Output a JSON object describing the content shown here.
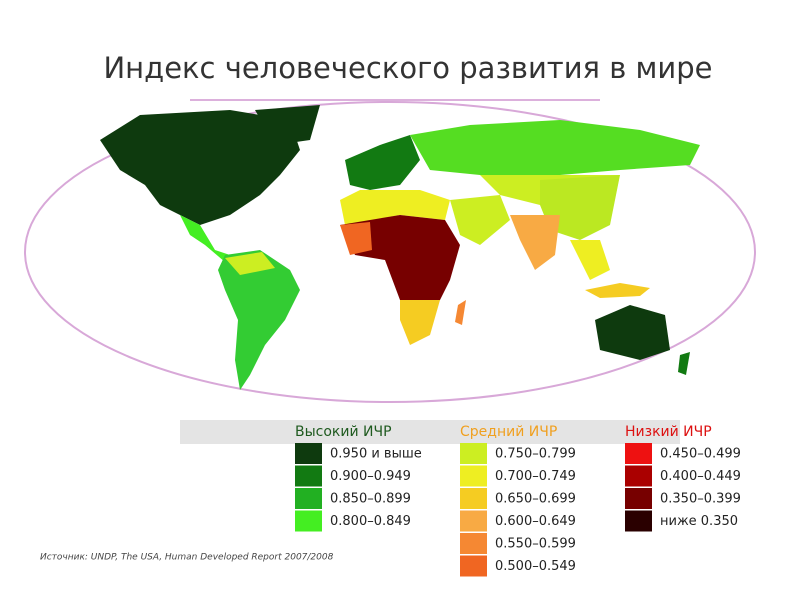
{
  "title": "Индекс человеческого развития в мире",
  "legend": {
    "groups": [
      {
        "title": "Высокий ИЧР",
        "color": "#1f5a1f",
        "items": [
          {
            "label": "0.950 и выше",
            "color": "#0e3a0e"
          },
          {
            "label": "0.900–0.949",
            "color": "#127a12"
          },
          {
            "label": "0.850–0.899",
            "color": "#22b022"
          },
          {
            "label": "0.800–0.849",
            "color": "#44ee22"
          }
        ]
      },
      {
        "title": "Средний ИЧР",
        "color": "#f0a020",
        "items": [
          {
            "label": "0.750–0.799",
            "color": "#ccee22"
          },
          {
            "label": "0.700–0.749",
            "color": "#eeee22"
          },
          {
            "label": "0.650–0.699",
            "color": "#f5cc22"
          },
          {
            "label": "0.600–0.649",
            "color": "#f8aa44"
          },
          {
            "label": "0.550–0.599",
            "color": "#f58833"
          },
          {
            "label": "0.500–0.549",
            "color": "#f06622"
          }
        ]
      },
      {
        "title": "Низкий ИЧР",
        "color": "#dd1111",
        "items": [
          {
            "label": "0.450–0.499",
            "color": "#ee1111"
          },
          {
            "label": "0.400–0.449",
            "color": "#aa0000"
          },
          {
            "label": "0.350–0.399",
            "color": "#770000"
          },
          {
            "label": "ниже 0.350",
            "color": "#2a0000"
          }
        ]
      }
    ]
  },
  "source": "Источник: UNDP, The USA, Human Developed Report 2007/2008"
}
